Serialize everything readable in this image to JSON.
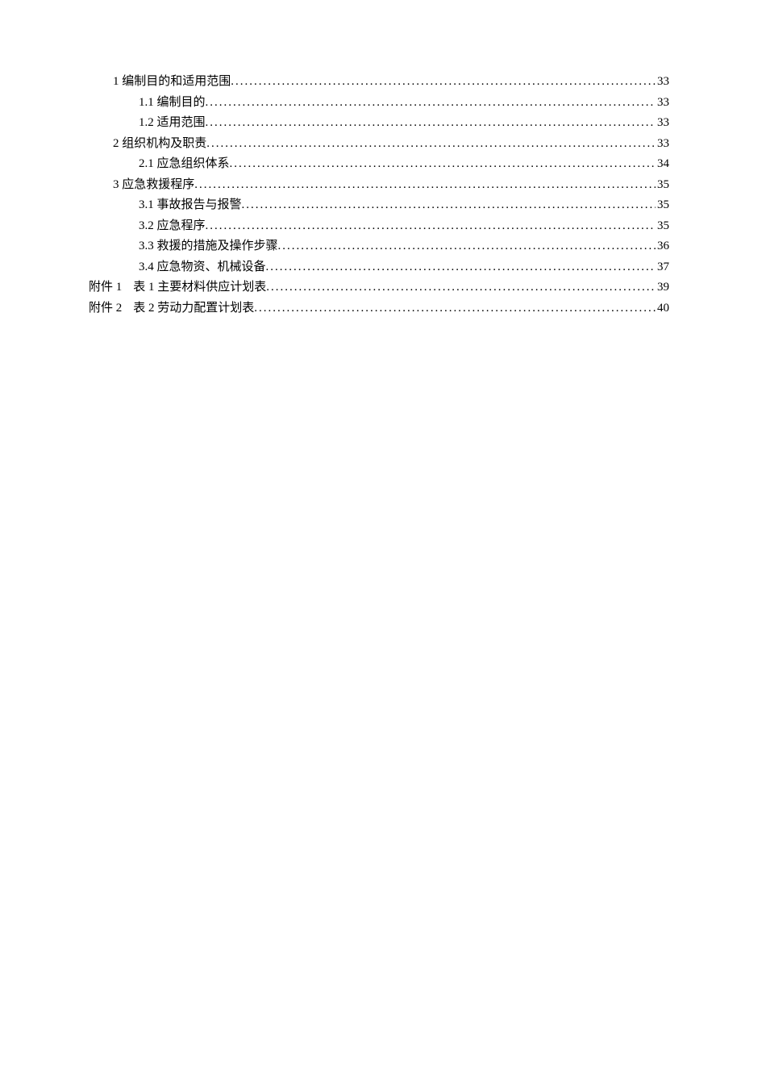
{
  "toc": {
    "entries": [
      {
        "indent": "indent-0",
        "label": "1 编制目的和适用范围",
        "page": "33",
        "isAttach": false
      },
      {
        "indent": "indent-1",
        "label": "1.1 编制目的",
        "page": "33",
        "isAttach": false
      },
      {
        "indent": "indent-1",
        "label": "1.2 适用范围",
        "page": "33",
        "isAttach": false
      },
      {
        "indent": "indent-0",
        "label": "2 组织机构及职责",
        "page": "33",
        "isAttach": false
      },
      {
        "indent": "indent-1",
        "label": "2.1 应急组织体系",
        "page": "34",
        "isAttach": false
      },
      {
        "indent": "indent-0",
        "label": "3 应急救援程序",
        "page": "35",
        "isAttach": false
      },
      {
        "indent": "indent-1",
        "label": "3.1 事故报告与报警",
        "page": "35",
        "isAttach": false
      },
      {
        "indent": "indent-1",
        "label": "3.2 应急程序",
        "page": "35",
        "isAttach": false
      },
      {
        "indent": "indent-1",
        "label": "3.3 救援的措施及操作步骤",
        "page": "36",
        "isAttach": false
      },
      {
        "indent": "indent-1",
        "label": "3.4 应急物资、机械设备",
        "page": "37",
        "isAttach": false
      },
      {
        "indent": "attach",
        "prefix": "附件 1",
        "label": "表 1 主要材料供应计划表 ",
        "page": "39",
        "isAttach": true
      },
      {
        "indent": "attach",
        "prefix": "附件 2",
        "label": "表 2 劳动力配置计划表",
        "page": "40",
        "isAttach": true
      }
    ]
  },
  "colors": {
    "background": "#ffffff",
    "text": "#000000"
  },
  "typography": {
    "fontFamily": "SimSun",
    "fontSize": 15
  }
}
